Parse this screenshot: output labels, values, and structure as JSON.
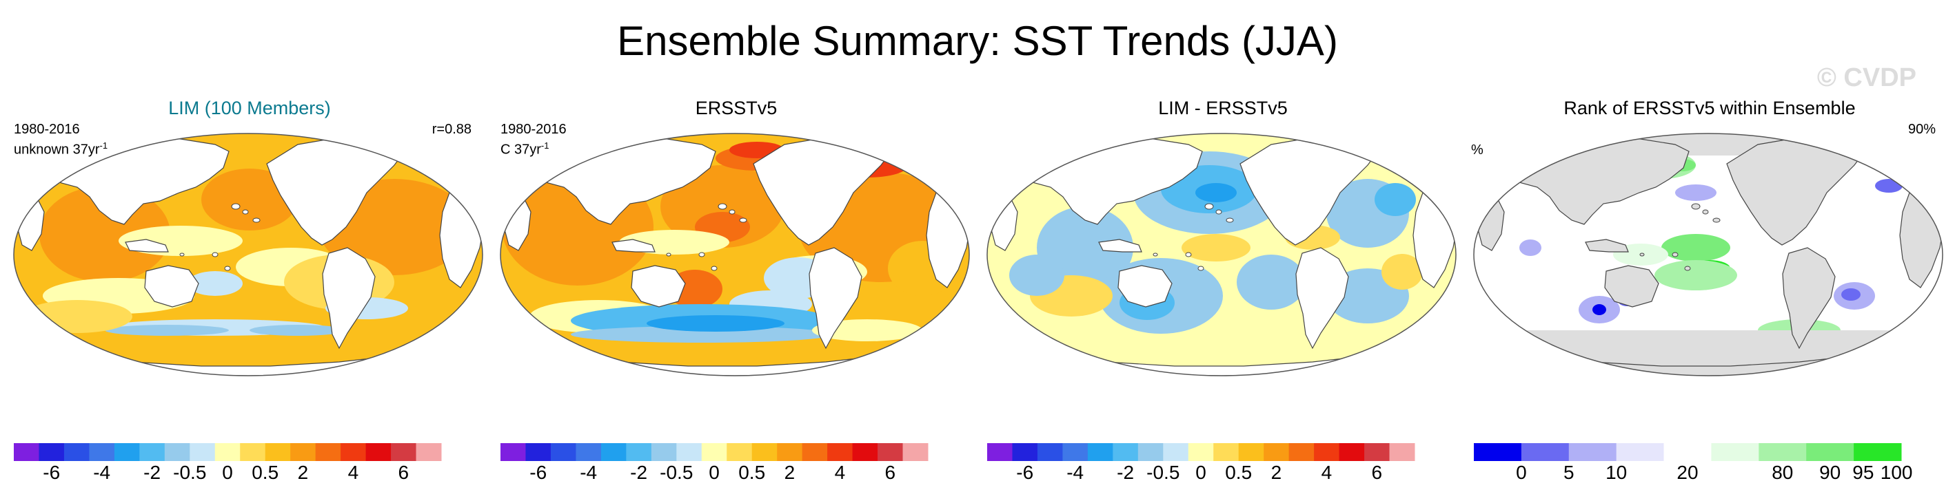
{
  "title": "Ensemble Summary: SST Trends (JJA)",
  "watermark": "© CVDP",
  "colors": {
    "trend_scale": [
      "#7e1fe0",
      "#2222dd",
      "#2a50e6",
      "#3f78e8",
      "#20a0ee",
      "#52bbf1",
      "#96cbec",
      "#c8e6f8",
      "#ffffb0",
      "#ffdc57",
      "#fbbf1c",
      "#f99b13",
      "#f56e12",
      "#f03a10",
      "#e20b0e",
      "#d43b42",
      "#f4a6a8"
    ],
    "rank_scale": [
      "#0000ee",
      "#6a6af2",
      "#b0b0f6",
      "#e6e6fc",
      "#ffffff",
      "#e4fce4",
      "#a8f2a8",
      "#7aec7a",
      "#28e628"
    ],
    "land": "#ffffff",
    "land_masked": "#dedede",
    "coast": "#444444"
  },
  "panels": [
    {
      "title": "LIM (100 Members)",
      "left_label_1": "1980-2016",
      "left_label_2": "unknown 37yr",
      "left_label_sup": "-1",
      "right_label": "r=0.88"
    },
    {
      "title": "ERSSTv5",
      "left_label_1": "1980-2016",
      "left_label_2": "C 37yr",
      "left_label_sup": "-1",
      "right_label": ""
    },
    {
      "title": "LIM - ERSSTv5",
      "left_label_1": "",
      "left_label_2": "",
      "left_label_sup": "",
      "right_label": ""
    },
    {
      "title": "Rank of ERSSTv5 within Ensemble",
      "left_label_1": "%",
      "left_label_2": "",
      "left_label_sup": "",
      "right_label": "90%"
    }
  ],
  "chart_data": [
    {
      "type": "heatmap",
      "title": "LIM (100 Members)",
      "period": "1980-2016",
      "units": "unknown 37yr-1",
      "pattern_correlation": 0.88,
      "colorbar_ticks": [
        "-6",
        "-4",
        "-2",
        "-0.5",
        "0",
        "0.5",
        "2",
        "4",
        "6"
      ]
    },
    {
      "type": "heatmap",
      "title": "ERSSTv5",
      "period": "1980-2016",
      "units": "C 37yr-1",
      "colorbar_ticks": [
        "-6",
        "-4",
        "-2",
        "-0.5",
        "0",
        "0.5",
        "2",
        "4",
        "6"
      ]
    },
    {
      "type": "heatmap",
      "title": "LIM - ERSSTv5",
      "colorbar_ticks": [
        "-6",
        "-4",
        "-2",
        "-0.5",
        "0",
        "0.5",
        "2",
        "4",
        "6"
      ]
    },
    {
      "type": "heatmap",
      "title": "Rank of ERSSTv5 within Ensemble",
      "units": "%",
      "summary_label": "90%",
      "colorbar_ticks": [
        "0",
        "5",
        "10",
        "20",
        "80",
        "90",
        "95",
        "100"
      ]
    }
  ]
}
